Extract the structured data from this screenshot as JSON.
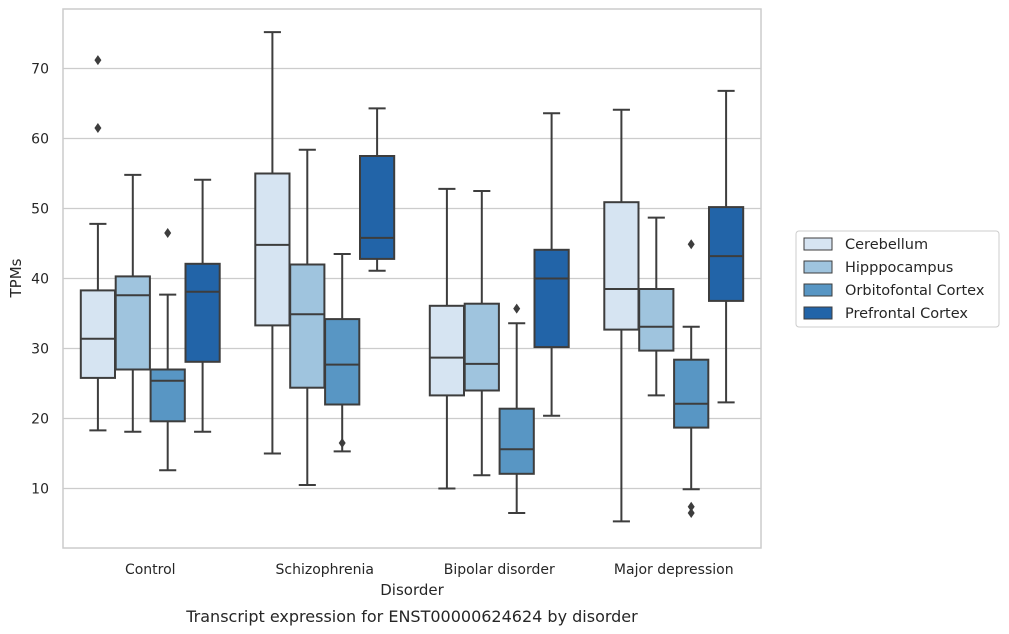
{
  "chart_data": {
    "type": "box",
    "xlabel": "Disorder",
    "ylabel": "TPMs",
    "caption": "Transcript expression for ENST00000624624 by disorder",
    "ylim": [
      1.5,
      78.5
    ],
    "yticks": [
      10,
      20,
      30,
      40,
      50,
      60,
      70
    ],
    "grid": "horizontal",
    "legend_position": "right",
    "categories": [
      "Control",
      "Schizophrenia",
      "Bipolar disorder",
      "Major depression"
    ],
    "series": [
      {
        "name": "Cerebellum",
        "color": "#d6e4f2",
        "boxes": [
          {
            "min": 18.3,
            "q1": 25.8,
            "median": 31.4,
            "q3": 38.3,
            "max": 47.8,
            "outliers": [
              61.5,
              71.2
            ]
          },
          {
            "min": 15.0,
            "q1": 33.3,
            "median": 44.8,
            "q3": 55.0,
            "max": 75.2,
            "outliers": []
          },
          {
            "min": 10.0,
            "q1": 23.3,
            "median": 28.7,
            "q3": 36.1,
            "max": 52.8,
            "outliers": []
          },
          {
            "min": 5.3,
            "q1": 32.7,
            "median": 38.5,
            "q3": 50.9,
            "max": 64.1,
            "outliers": []
          }
        ]
      },
      {
        "name": "Hipppocampus",
        "color": "#9fc4de",
        "boxes": [
          {
            "min": 18.1,
            "q1": 27.0,
            "median": 37.6,
            "q3": 40.3,
            "max": 54.8,
            "outliers": []
          },
          {
            "min": 10.5,
            "q1": 24.4,
            "median": 34.9,
            "q3": 42.0,
            "max": 58.4,
            "outliers": []
          },
          {
            "min": 11.9,
            "q1": 24.0,
            "median": 27.8,
            "q3": 36.4,
            "max": 52.5,
            "outliers": []
          },
          {
            "min": 23.3,
            "q1": 29.7,
            "median": 33.1,
            "q3": 38.5,
            "max": 48.7,
            "outliers": []
          }
        ]
      },
      {
        "name": "Orbitofontal Cortex",
        "color": "#5896c4",
        "boxes": [
          {
            "min": 12.6,
            "q1": 19.6,
            "median": 25.4,
            "q3": 27.0,
            "max": 37.7,
            "outliers": [
              46.5
            ]
          },
          {
            "min": 15.3,
            "q1": 22.0,
            "median": 27.7,
            "q3": 34.2,
            "max": 43.5,
            "outliers": [
              16.5
            ]
          },
          {
            "min": 6.5,
            "q1": 12.1,
            "median": 15.6,
            "q3": 21.4,
            "max": 33.6,
            "outliers": [
              35.7
            ]
          },
          {
            "min": 9.9,
            "q1": 18.7,
            "median": 22.1,
            "q3": 28.4,
            "max": 33.1,
            "outliers": [
              44.9,
              7.4,
              6.5
            ]
          }
        ]
      },
      {
        "name": "Prefrontal Cortex",
        "color": "#2264a8",
        "boxes": [
          {
            "min": 18.1,
            "q1": 28.1,
            "median": 38.1,
            "q3": 42.1,
            "max": 54.1,
            "outliers": []
          },
          {
            "min": 41.1,
            "q1": 42.8,
            "median": 45.8,
            "q3": 57.5,
            "max": 64.3,
            "outliers": []
          },
          {
            "min": 20.4,
            "q1": 30.2,
            "median": 40.0,
            "q3": 44.1,
            "max": 63.6,
            "outliers": []
          },
          {
            "min": 22.3,
            "q1": 36.8,
            "median": 43.2,
            "q3": 50.2,
            "max": 66.8,
            "outliers": []
          }
        ]
      }
    ]
  }
}
